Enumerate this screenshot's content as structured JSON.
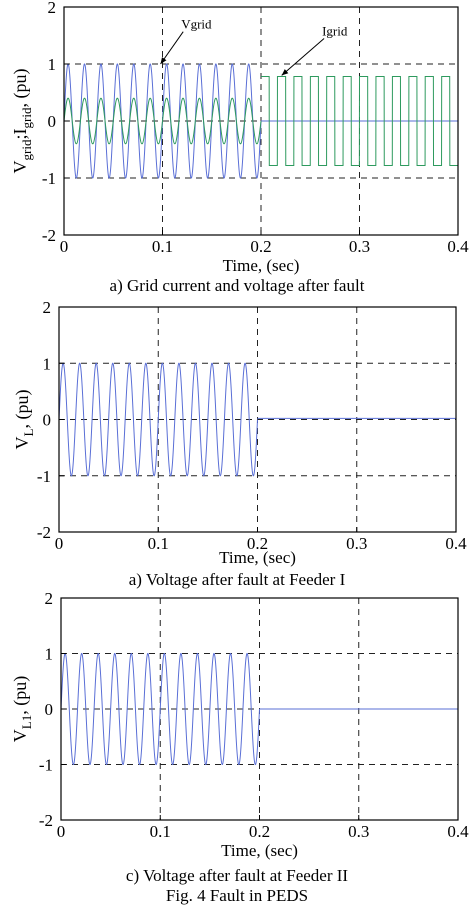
{
  "figure_caption": "Fig. 4  Fault in PEDS",
  "colors": {
    "voltage": "#5a6fd6",
    "current": "#2e9a5e"
  },
  "chart_data": [
    {
      "type": "line",
      "caption": "a) Grid current and voltage after fault",
      "xlabel": "Time, (sec)",
      "ylabel_main": "V",
      "ylabel_sub1": "grid",
      "ylabel_mid": ";I",
      "ylabel_sub2": "grid",
      "ylabel_tail": ", (pu)",
      "xlim": [
        0,
        0.4
      ],
      "ylim": [
        -2,
        2
      ],
      "xticks": [
        "0",
        "0.1",
        "0.2",
        "0.3",
        "0.4"
      ],
      "yticks": [
        "-2",
        "-1",
        "0",
        "1",
        "2"
      ],
      "grid": true,
      "annotations": [
        {
          "text": "Vgrid",
          "text_x": 0.119,
          "text_y": 1.62,
          "arrow_to_x": 0.098,
          "arrow_to_y": 1.0
        },
        {
          "text": "Igrid",
          "text_x": 0.262,
          "text_y": 1.5,
          "arrow_to_x": 0.221,
          "arrow_to_y": 0.8
        }
      ],
      "series": [
        {
          "signal": "voltage",
          "color": "#5a6fd6",
          "segments": [
            {
              "kind": "sine",
              "t_start": 0.0,
              "t_end": 0.2,
              "freq_hz": 60,
              "amplitude": 1.0
            },
            {
              "kind": "constant",
              "t_start": 0.2,
              "t_end": 0.4,
              "value": 0.0
            }
          ]
        },
        {
          "signal": "current",
          "color": "#2e9a5e",
          "segments": [
            {
              "kind": "sine",
              "t_start": 0.0,
              "t_end": 0.2,
              "freq_hz": 60,
              "amplitude": 0.4
            },
            {
              "kind": "square",
              "t_start": 0.2,
              "t_end": 0.4,
              "freq_hz": 60,
              "amplitude": 0.78
            }
          ]
        }
      ]
    },
    {
      "type": "line",
      "caption": "a) Voltage after fault at Feeder I",
      "xlabel": "Time, (sec)",
      "ylabel_main": "V",
      "ylabel_sub1": "L",
      "ylabel_mid": "",
      "ylabel_sub2": "",
      "ylabel_tail": ", (pu)",
      "xlim": [
        0,
        0.4
      ],
      "ylim": [
        -2,
        2
      ],
      "xticks": [
        "0",
        "0.1",
        "0.2",
        "0.3",
        "0.4"
      ],
      "yticks": [
        "-2",
        "-1",
        "0",
        "1",
        "2"
      ],
      "grid": true,
      "annotations": [],
      "series": [
        {
          "signal": "voltage",
          "color": "#5a6fd6",
          "segments": [
            {
              "kind": "sine",
              "t_start": 0.0,
              "t_end": 0.2,
              "freq_hz": 60,
              "amplitude": 1.0
            },
            {
              "kind": "constant",
              "t_start": 0.2,
              "t_end": 0.4,
              "value": 0.02
            }
          ]
        }
      ]
    },
    {
      "type": "line",
      "caption": "c) Voltage after fault at Feeder II",
      "xlabel": "Time, (sec)",
      "ylabel_main": "V",
      "ylabel_sub1": "L1",
      "ylabel_mid": "",
      "ylabel_sub2": "",
      "ylabel_tail": ", (pu)",
      "xlim": [
        0,
        0.4
      ],
      "ylim": [
        -2,
        2
      ],
      "xticks": [
        "0",
        "0.1",
        "0.2",
        "0.3",
        "0.4"
      ],
      "yticks": [
        "-2",
        "-1",
        "0",
        "1",
        "2"
      ],
      "grid": true,
      "annotations": [],
      "series": [
        {
          "signal": "voltage",
          "color": "#5a6fd6",
          "segments": [
            {
              "kind": "sine",
              "t_start": 0.0,
              "t_end": 0.2,
              "freq_hz": 60,
              "amplitude": 1.0
            },
            {
              "kind": "constant",
              "t_start": 0.2,
              "t_end": 0.4,
              "value": 0.0
            }
          ]
        }
      ]
    }
  ]
}
